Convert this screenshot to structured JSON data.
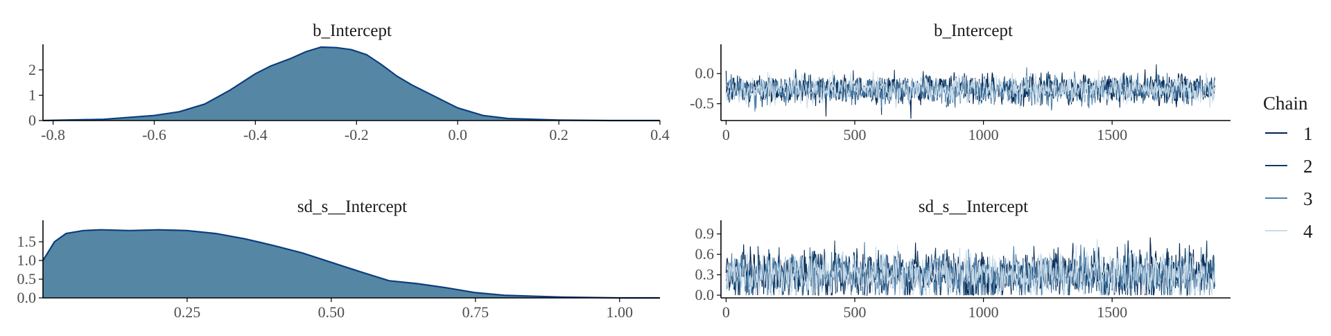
{
  "legend": {
    "title": "Chain",
    "entries": [
      {
        "label": "1",
        "color": "#011f4b"
      },
      {
        "label": "2",
        "color": "#0e3a64"
      },
      {
        "label": "3",
        "color": "#4e7fa8"
      },
      {
        "label": "4",
        "color": "#c7dbe9"
      }
    ]
  },
  "colors": {
    "density_fill": "#5587a4",
    "density_line": "#0b3d7f",
    "axis": "#000000"
  },
  "chart_data": [
    {
      "type": "area",
      "title": "b_Intercept",
      "xlim": [
        -0.82,
        0.4
      ],
      "ylim": [
        0,
        2.9
      ],
      "xticks": [
        -0.8,
        -0.6,
        -0.4,
        -0.2,
        0.0,
        0.2,
        0.4
      ],
      "xtick_labels": [
        "-0.8",
        "-0.6",
        "-0.4",
        "-0.2",
        "0.0",
        "0.2",
        "0.4"
      ],
      "yticks": [
        0,
        1,
        2
      ],
      "ytick_labels": [
        "0",
        "1",
        "2"
      ],
      "x": [
        -0.82,
        -0.7,
        -0.6,
        -0.55,
        -0.5,
        -0.45,
        -0.4,
        -0.37,
        -0.33,
        -0.3,
        -0.27,
        -0.24,
        -0.21,
        -0.18,
        -0.15,
        -0.12,
        -0.09,
        -0.06,
        -0.03,
        0.0,
        0.05,
        0.1,
        0.2,
        0.3,
        0.4
      ],
      "y": [
        0.0,
        0.05,
        0.2,
        0.35,
        0.65,
        1.2,
        1.85,
        2.15,
        2.45,
        2.72,
        2.9,
        2.88,
        2.8,
        2.6,
        2.2,
        1.75,
        1.4,
        1.1,
        0.8,
        0.5,
        0.2,
        0.08,
        0.02,
        0.0,
        0.0
      ]
    },
    {
      "type": "line",
      "title": "b_Intercept",
      "xlim": [
        -20,
        1960
      ],
      "ylim": [
        -0.78,
        0.44
      ],
      "xticks": [
        0,
        500,
        1000,
        1500
      ],
      "xtick_labels": [
        "0",
        "500",
        "1000",
        "1500"
      ],
      "yticks": [
        0.0,
        -0.5
      ],
      "ytick_labels": [
        "0.0",
        "-0.5"
      ],
      "iterations": 1900,
      "series": [
        {
          "name": "1",
          "mean": -0.26,
          "sd": 0.13
        },
        {
          "name": "2",
          "mean": -0.25,
          "sd": 0.13
        },
        {
          "name": "3",
          "mean": -0.27,
          "sd": 0.13
        },
        {
          "name": "4",
          "mean": -0.26,
          "sd": 0.13
        }
      ],
      "range": [
        -0.75,
        0.38
      ]
    },
    {
      "type": "area",
      "title": "sd_s__Intercept",
      "xlim": [
        0.0,
        1.07
      ],
      "ylim": [
        0,
        2.0
      ],
      "xticks": [
        0.25,
        0.5,
        0.75,
        1.0
      ],
      "xtick_labels": [
        "0.25",
        "0.50",
        "0.75",
        "1.00"
      ],
      "yticks": [
        0.0,
        0.5,
        1.0,
        1.5
      ],
      "ytick_labels": [
        "0.0",
        "0.5",
        "1.0",
        "1.5"
      ],
      "x": [
        0.0,
        0.02,
        0.04,
        0.07,
        0.1,
        0.15,
        0.2,
        0.25,
        0.3,
        0.35,
        0.4,
        0.45,
        0.5,
        0.55,
        0.6,
        0.65,
        0.7,
        0.75,
        0.8,
        0.9,
        1.0,
        1.07
      ],
      "y": [
        1.0,
        1.5,
        1.72,
        1.8,
        1.82,
        1.8,
        1.82,
        1.8,
        1.72,
        1.58,
        1.4,
        1.2,
        0.95,
        0.7,
        0.46,
        0.38,
        0.27,
        0.14,
        0.07,
        0.02,
        0.0,
        0.0
      ]
    },
    {
      "type": "line",
      "title": "sd_s__Intercept",
      "xlim": [
        -20,
        1960
      ],
      "ylim": [
        -0.04,
        1.06
      ],
      "xticks": [
        0,
        500,
        1000,
        1500
      ],
      "xtick_labels": [
        "0",
        "500",
        "1000",
        "1500"
      ],
      "yticks": [
        0.0,
        0.3,
        0.6,
        0.9
      ],
      "ytick_labels": [
        "0.0",
        "0.3",
        "0.6",
        "0.9"
      ],
      "iterations": 1900,
      "series": [
        {
          "name": "1",
          "mean": 0.3,
          "sd": 0.19
        },
        {
          "name": "2",
          "mean": 0.3,
          "sd": 0.19
        },
        {
          "name": "3",
          "mean": 0.29,
          "sd": 0.19
        },
        {
          "name": "4",
          "mean": 0.3,
          "sd": 0.19
        }
      ],
      "range": [
        0.0,
        1.04
      ]
    }
  ]
}
